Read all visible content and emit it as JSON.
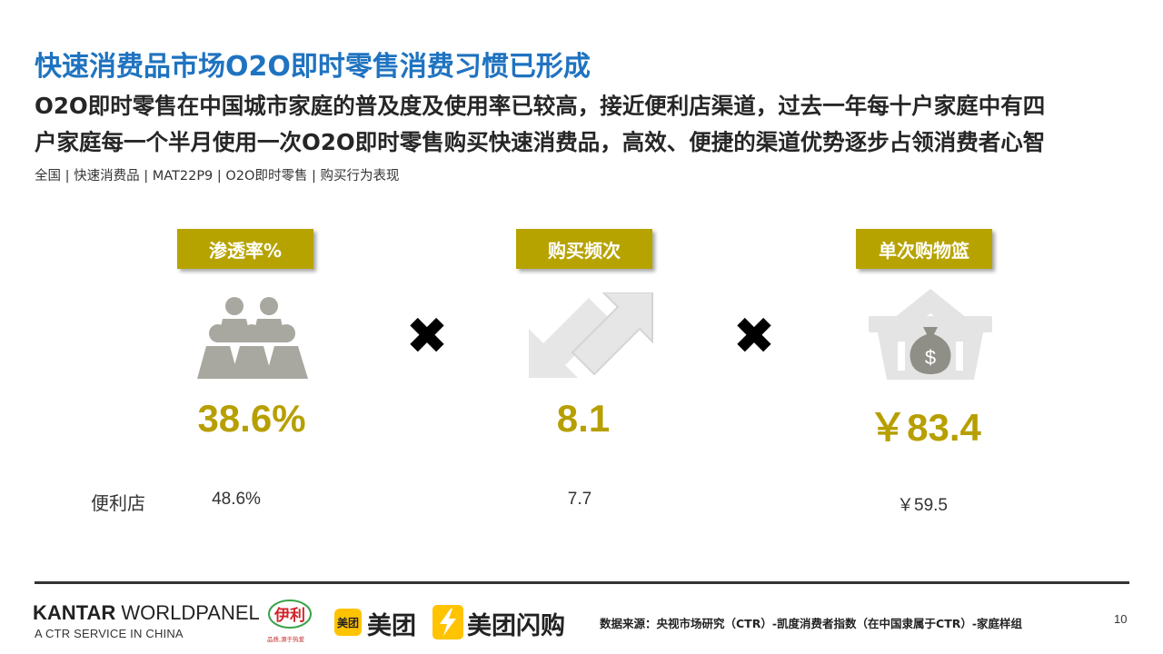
{
  "header": {
    "title": "快速消费品市场O2O即时零售消费习惯已形成",
    "subtitle_line1": "O2O即时零售在中国城市家庭的普及度及使用率已较高，接近便利店渠道，过去一年每十户家庭中有四",
    "subtitle_line2": "户家庭每一个半月使用一次O2O即时零售购买快速消费品，高效、便捷的渠道优势逐步占领消费者心智",
    "scope": "全国 | 快速消费品 | MAT22P9 | O2O即时零售 | 购买行为表现"
  },
  "metrics": [
    {
      "label": "渗透率%",
      "value": "38.6%",
      "convenience_value": "48.6%",
      "icon": "people-group-icon"
    },
    {
      "label": "购买频次",
      "value": "8.1",
      "convenience_value": "7.7",
      "icon": "bidirectional-arrows-icon"
    },
    {
      "label": "单次购物篮",
      "value": "￥83.4",
      "convenience_value": "￥59.5",
      "icon": "shopping-basket-money-icon"
    }
  ],
  "operator_symbol": "✖",
  "comparison_row_label": "便利店",
  "footer": {
    "brand_strong": "KANTAR",
    "brand_rest": " WORLDPANEL",
    "brand_tagline": "A CTR SERVICE IN CHINA",
    "yili_logo_text": "伊利",
    "yili_slogan": "品质,源于热爱",
    "meituan_badge": "美团",
    "meituan_text": "美团",
    "meituan_flash_text": "美团闪购",
    "source": "数据来源：央视市场研究（CTR）-凯度消费者指数（在中国隶属于CTR）-家庭样组",
    "page_number": "10"
  },
  "colors": {
    "title_blue": "#1f73c0",
    "accent_gold": "#b7a300",
    "number_gold": "#b79f00",
    "icon_gray": "#a8a8a0",
    "meituan_yellow": "#ffc300"
  }
}
